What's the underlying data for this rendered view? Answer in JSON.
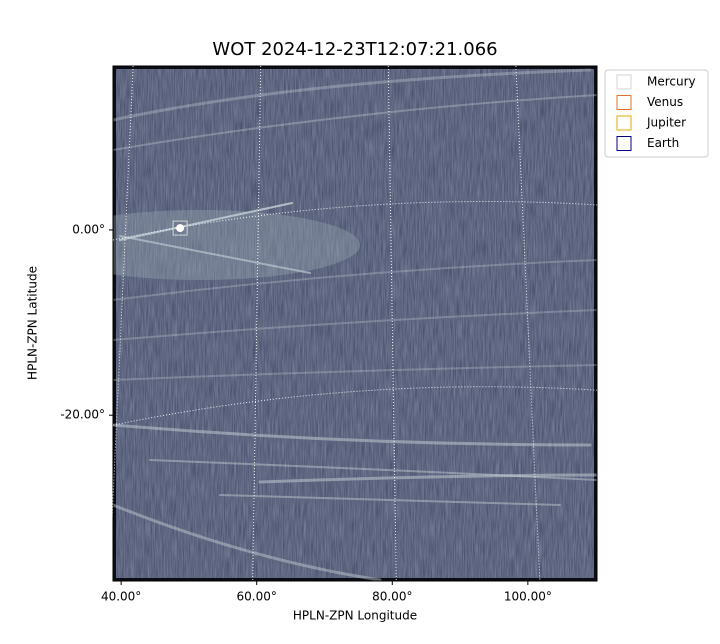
{
  "chart_data": {
    "type": "image",
    "title": "WOT 2024-12-23T12:07:21.066",
    "xlabel": "HPLN-ZPN Longitude",
    "ylabel": "HPLN-ZPN Latitude",
    "xlim": [
      38.8,
      110.2
    ],
    "ylim": [
      -37.9,
      17.7
    ],
    "xticks": [
      {
        "value": 40,
        "label": "40.00°"
      },
      {
        "value": 60,
        "label": "60.00°"
      },
      {
        "value": 80,
        "label": "80.00°"
      },
      {
        "value": 100,
        "label": "100.00°"
      }
    ],
    "yticks": [
      {
        "value": 0,
        "label": "0.00°"
      },
      {
        "value": -20,
        "label": "-20.00°"
      }
    ],
    "grid": true,
    "legend": "upper right",
    "series": [
      {
        "name": "Mercury",
        "color": "#d3d3d3",
        "x": [
          48.7
        ],
        "y": [
          0.2
        ]
      },
      {
        "name": "Venus",
        "color": "#e0702a",
        "x": [],
        "y": []
      },
      {
        "name": "Jupiter",
        "color": "#e5a800",
        "x": [],
        "y": []
      },
      {
        "name": "Earth",
        "color": "#000080",
        "x": [],
        "y": []
      }
    ]
  }
}
